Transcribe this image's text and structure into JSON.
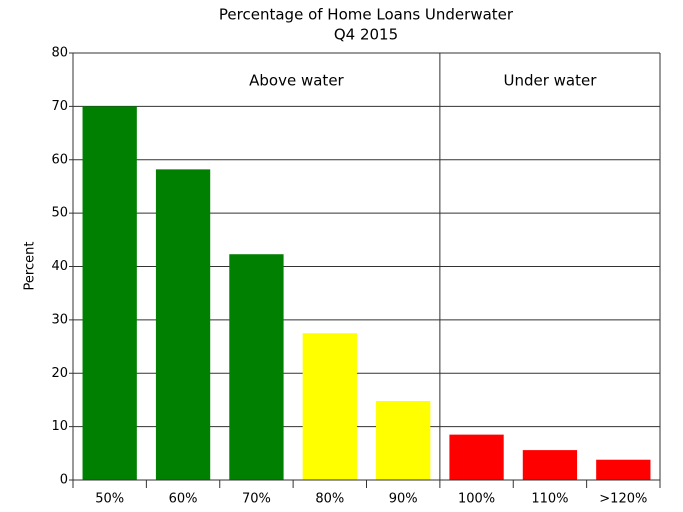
{
  "chart_data": {
    "type": "bar",
    "title": "Percentage of Home Loans Underwater",
    "subtitle": "Q4 2015",
    "ylabel": "Percent",
    "categories": [
      "50%",
      "60%",
      "70%",
      "80%",
      "90%",
      "100%",
      "110%",
      ">120%"
    ],
    "values": [
      70,
      58.2,
      42.3,
      27.5,
      14.8,
      8.5,
      5.6,
      3.8
    ],
    "colors": [
      "#008000",
      "#008000",
      "#008000",
      "#ffff00",
      "#ffff00",
      "#ff0000",
      "#ff0000",
      "#ff0000"
    ],
    "annotations": [
      "Above water",
      "Under water"
    ],
    "ylim": [
      0,
      80
    ],
    "yticks": [
      0,
      10,
      20,
      30,
      40,
      50,
      60,
      70,
      80
    ],
    "grid": true
  }
}
